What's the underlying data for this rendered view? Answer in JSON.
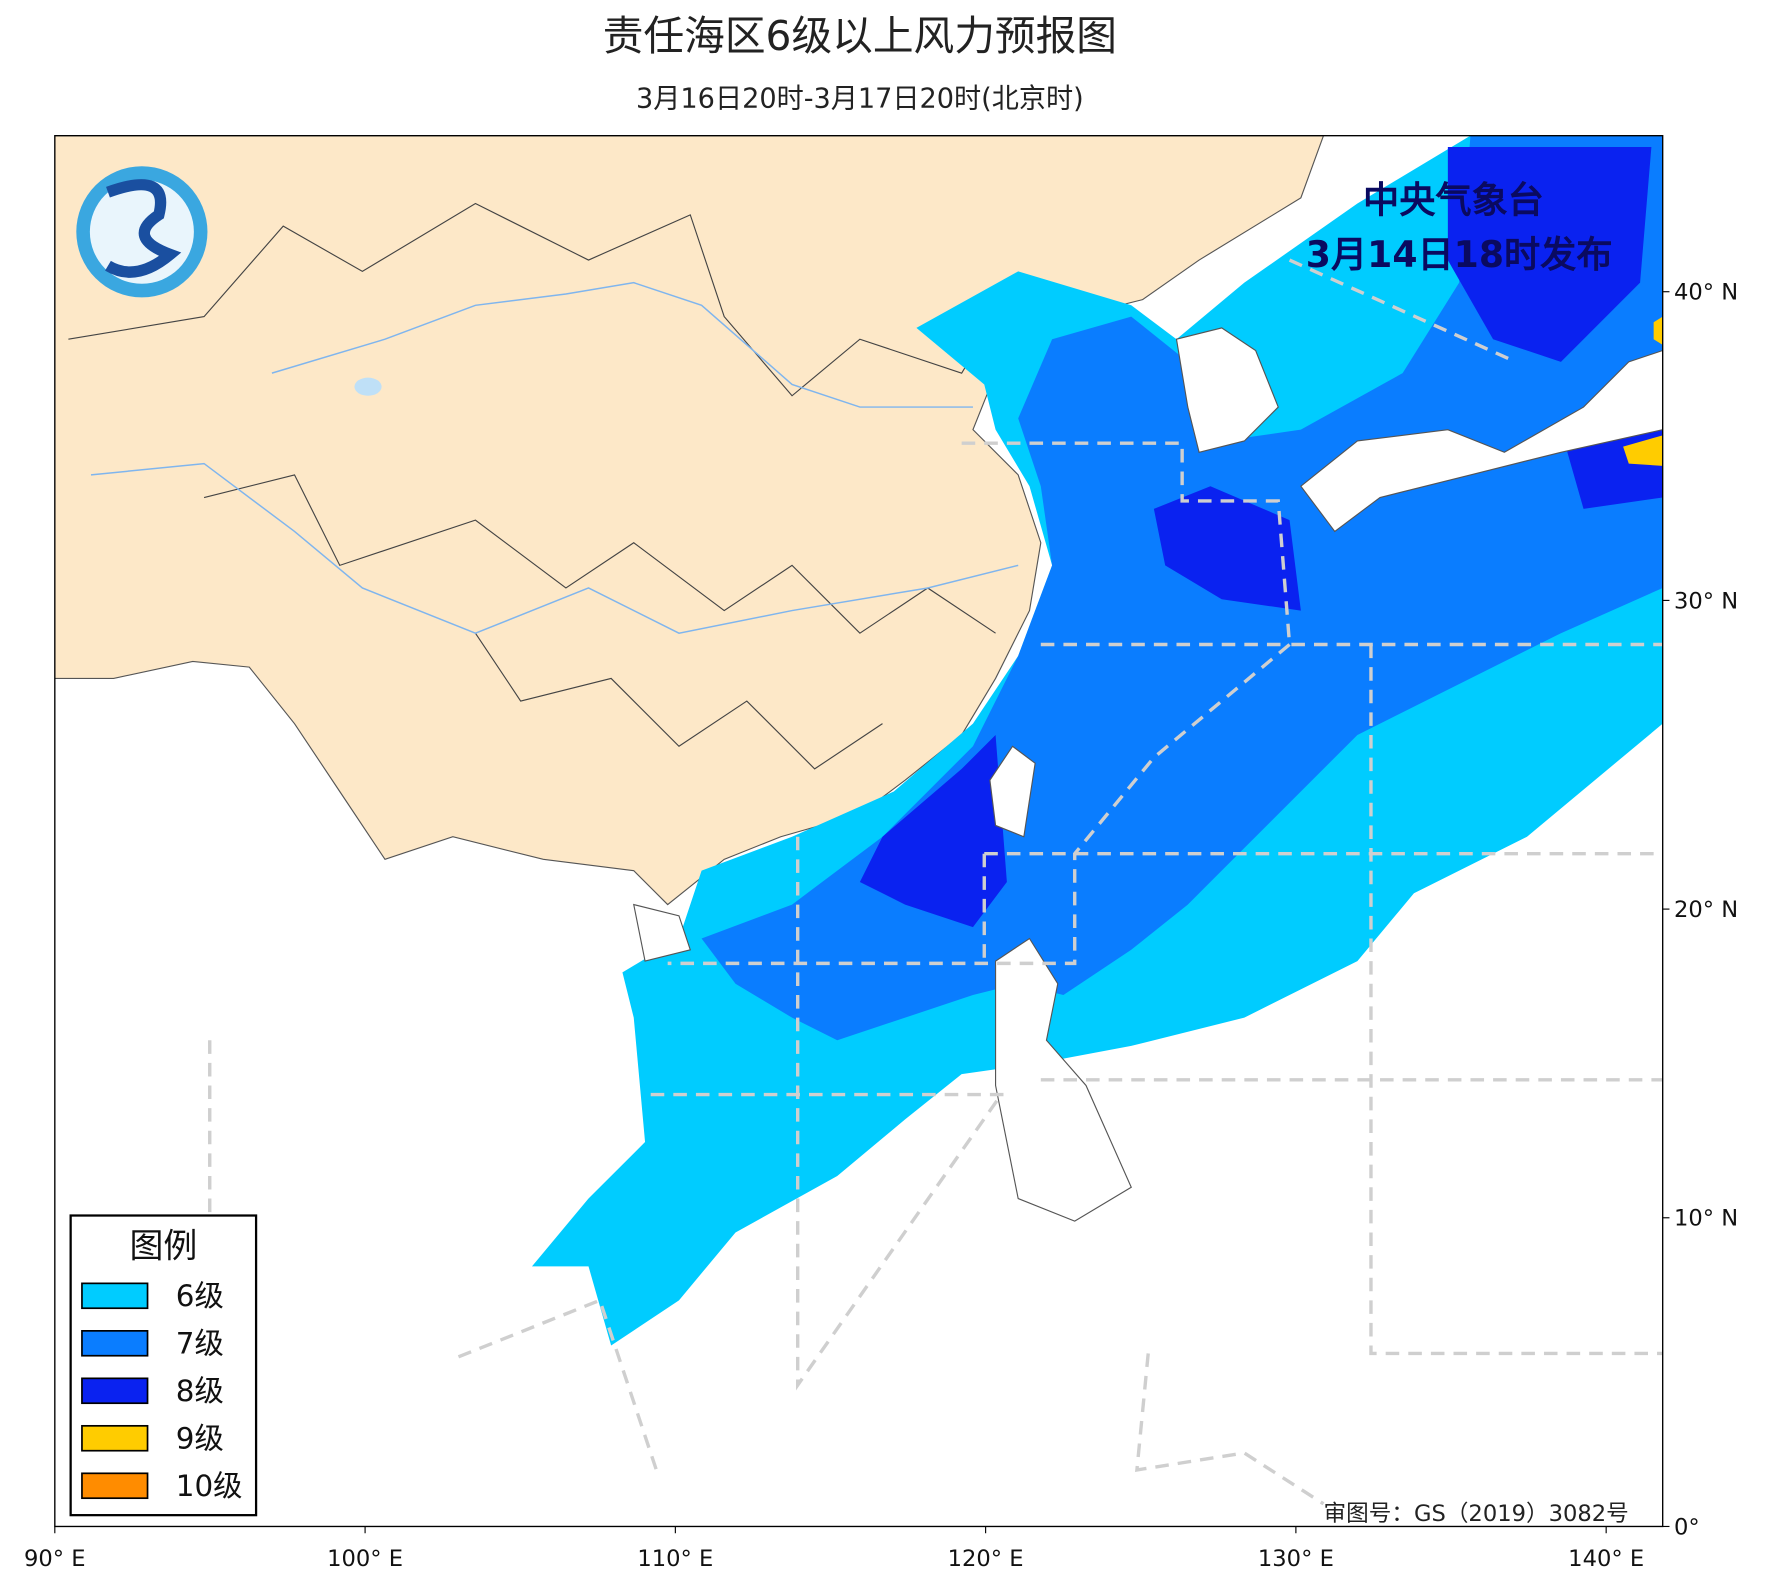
{
  "header": {
    "title": "责任海区6级以上风力预报图",
    "subtitle": "3月16日20时-3月17日20时(北京时)"
  },
  "issuer": {
    "name": "中央气象台",
    "time": "3月14日18时发布"
  },
  "legend": {
    "title": "图例",
    "items": [
      {
        "label": "6级",
        "color": "#00ccff"
      },
      {
        "label": "7级",
        "color": "#0a7dff"
      },
      {
        "label": "8级",
        "color": "#0a22f0"
      },
      {
        "label": "9级",
        "color": "#ffcc00"
      },
      {
        "label": "10级",
        "color": "#ff8c00"
      }
    ]
  },
  "axes": {
    "x_labels": [
      "90° E",
      "100° E",
      "110° E",
      "120° E",
      "130° E",
      "140° E"
    ],
    "y_labels": [
      "0°",
      "10° N",
      "20° N",
      "30° N",
      "40° N"
    ]
  },
  "approval": "审图号：GS（2019）3082号"
}
